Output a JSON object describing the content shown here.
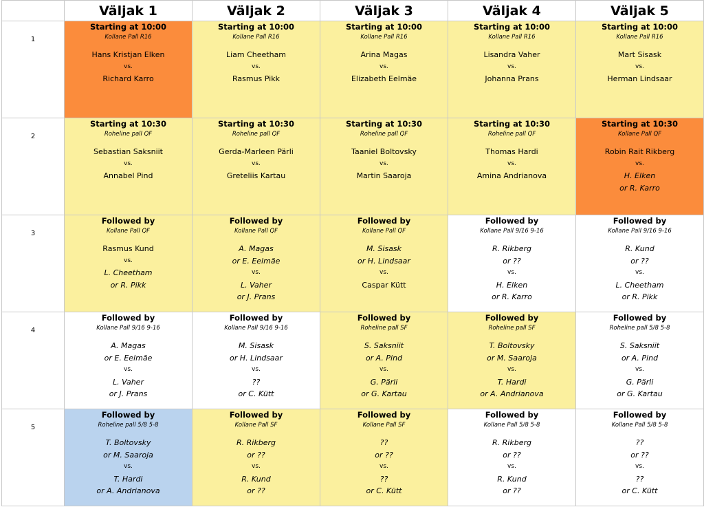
{
  "headers": [
    "Väljak 1",
    "Väljak 2",
    "Väljak 3",
    "Väljak 4",
    "Väljak 5"
  ],
  "rows": [
    {
      "number": "1",
      "cells": [
        {
          "color": "#fb8c3c",
          "title": "Starting at 10:00",
          "venue": "Kollane Pall  R16",
          "p1": [
            "Hans Kristjan Elken"
          ],
          "p2": [
            "Richard Karro"
          ],
          "italic": false
        },
        {
          "color": "#fbf09e",
          "title": "Starting at 10:00",
          "venue": "Kollane Pall  R16",
          "p1": [
            "Liam Cheetham"
          ],
          "p2": [
            "Rasmus Pikk"
          ],
          "italic": false
        },
        {
          "color": "#fbf09e",
          "title": "Starting at 10:00",
          "venue": "Kollane Pall  R16",
          "p1": [
            "Arina Magas"
          ],
          "p2": [
            "Elizabeth Eelmäe"
          ],
          "italic": false
        },
        {
          "color": "#fbf09e",
          "title": "Starting at 10:00",
          "venue": "Kollane Pall  R16",
          "p1": [
            "Lisandra Vaher"
          ],
          "p2": [
            "Johanna Prans"
          ],
          "italic": false
        },
        {
          "color": "#fbf09e",
          "title": "Starting at 10:00",
          "venue": "Kollane Pall  R16",
          "p1": [
            "Mart Sisask"
          ],
          "p2": [
            "Herman Lindsaar"
          ],
          "italic": false
        }
      ]
    },
    {
      "number": "2",
      "cells": [
        {
          "color": "#fbf09e",
          "title": "Starting at 10:30",
          "venue": "Roheline pall  QF",
          "p1": [
            "Sebastian Saksniit"
          ],
          "p2": [
            "Annabel Pind"
          ],
          "italic": false
        },
        {
          "color": "#fbf09e",
          "title": "Starting at 10:30",
          "venue": "Roheline pall  QF",
          "p1": [
            "Gerda-Marleen Pärli"
          ],
          "p2": [
            "Greteliis Kartau"
          ],
          "italic": false
        },
        {
          "color": "#fbf09e",
          "title": "Starting at 10:30",
          "venue": "Roheline pall  QF",
          "p1": [
            "Taaniel Boltovsky"
          ],
          "p2": [
            "Martin Saaroja"
          ],
          "italic": false
        },
        {
          "color": "#fbf09e",
          "title": "Starting at 10:30",
          "venue": "Roheline pall  QF",
          "p1": [
            "Thomas Hardi"
          ],
          "p2": [
            "Amina Andrianova"
          ],
          "italic": false
        },
        {
          "color": "#fb8c3c",
          "title": "Starting at 10:30",
          "venue": "Kollane Pall  QF",
          "p1": [
            "Robin Rait Rikberg"
          ],
          "p2": [
            "H. Elken",
            "or R. Karro"
          ],
          "italic": false,
          "p2italic": true
        }
      ]
    },
    {
      "number": "3",
      "cells": [
        {
          "color": "#fbf09e",
          "title": "Followed by",
          "venue": "Kollane Pall  QF",
          "p1": [
            "Rasmus Kund"
          ],
          "p2": [
            "L. Cheetham",
            "or R. Pikk"
          ],
          "italic": false,
          "p2italic": true
        },
        {
          "color": "#fbf09e",
          "title": "Followed by",
          "venue": "Kollane Pall  QF",
          "p1": [
            "A. Magas",
            "or E. Eelmäe"
          ],
          "p2": [
            "L. Vaher",
            "or J. Prans"
          ],
          "italic": true
        },
        {
          "color": "#fbf09e",
          "title": "Followed by",
          "venue": "Kollane Pall  QF",
          "p1": [
            "M. Sisask",
            "or H. Lindsaar"
          ],
          "p2": [
            "Caspar Kütt"
          ],
          "italic": true,
          "p2plain": true
        },
        {
          "color": "#ffffff",
          "title": "Followed by",
          "venue": "Kollane Pall  9/16 9-16",
          "p1": [
            "R. Rikberg",
            "or ??"
          ],
          "p2": [
            "H. Elken",
            "or R. Karro"
          ],
          "italic": true
        },
        {
          "color": "#ffffff",
          "title": "Followed by",
          "venue": "Kollane Pall  9/16 9-16",
          "p1": [
            "R. Kund",
            "or ??"
          ],
          "p2": [
            "L. Cheetham",
            "or R. Pikk"
          ],
          "italic": true
        }
      ]
    },
    {
      "number": "4",
      "cells": [
        {
          "color": "#ffffff",
          "title": "Followed by",
          "venue": "Kollane Pall  9/16 9-16",
          "p1": [
            "A. Magas",
            "or E. Eelmäe"
          ],
          "p2": [
            "L. Vaher",
            "or J. Prans"
          ],
          "italic": true
        },
        {
          "color": "#ffffff",
          "title": "Followed by",
          "venue": "Kollane Pall  9/16 9-16",
          "p1": [
            "M. Sisask",
            "or H. Lindsaar"
          ],
          "p2": [
            "??",
            "or C. Kütt"
          ],
          "italic": true
        },
        {
          "color": "#fbf09e",
          "title": "Followed by",
          "venue": "Roheline pall  SF",
          "p1": [
            "S. Saksniit",
            "or A. Pind"
          ],
          "p2": [
            "G. Pärli",
            "or G. Kartau"
          ],
          "italic": true
        },
        {
          "color": "#fbf09e",
          "title": "Followed by",
          "venue": "Roheline pall  SF",
          "p1": [
            "T. Boltovsky",
            "or M. Saaroja"
          ],
          "p2": [
            "T. Hardi",
            "or A. Andrianova"
          ],
          "italic": true
        },
        {
          "color": "#ffffff",
          "title": "Followed by",
          "venue": "Roheline pall  5/8 5-8",
          "p1": [
            "S. Saksniit",
            "or A. Pind"
          ],
          "p2": [
            "G. Pärli",
            "or G. Kartau"
          ],
          "italic": true
        }
      ]
    },
    {
      "number": "5",
      "cells": [
        {
          "color": "#bad3ee",
          "title": "Followed by",
          "venue": "Roheline pall  5/8 5-8",
          "p1": [
            "T. Boltovsky",
            "or M. Saaroja"
          ],
          "p2": [
            "T. Hardi",
            "or A. Andrianova"
          ],
          "italic": true
        },
        {
          "color": "#fbf09e",
          "title": "Followed by",
          "venue": "Kollane Pall  SF",
          "p1": [
            "R. Rikberg",
            "or ??"
          ],
          "p2": [
            "R. Kund",
            "or ??"
          ],
          "italic": true
        },
        {
          "color": "#fbf09e",
          "title": "Followed by",
          "venue": "Kollane Pall  SF",
          "p1": [
            "??",
            "or ??"
          ],
          "p2": [
            "??",
            "or C. Kütt"
          ],
          "italic": true
        },
        {
          "color": "#ffffff",
          "title": "Followed by",
          "venue": "Kollane Pall  5/8 5-8",
          "p1": [
            "R. Rikberg",
            "or ??"
          ],
          "p2": [
            "R. Kund",
            "or ??"
          ],
          "italic": true
        },
        {
          "color": "#ffffff",
          "title": "Followed by",
          "venue": "Kollane Pall  5/8 5-8",
          "p1": [
            "??",
            "or ??"
          ],
          "p2": [
            "??",
            "or C. Kütt"
          ],
          "italic": true
        }
      ]
    }
  ],
  "vs_label": "vs."
}
